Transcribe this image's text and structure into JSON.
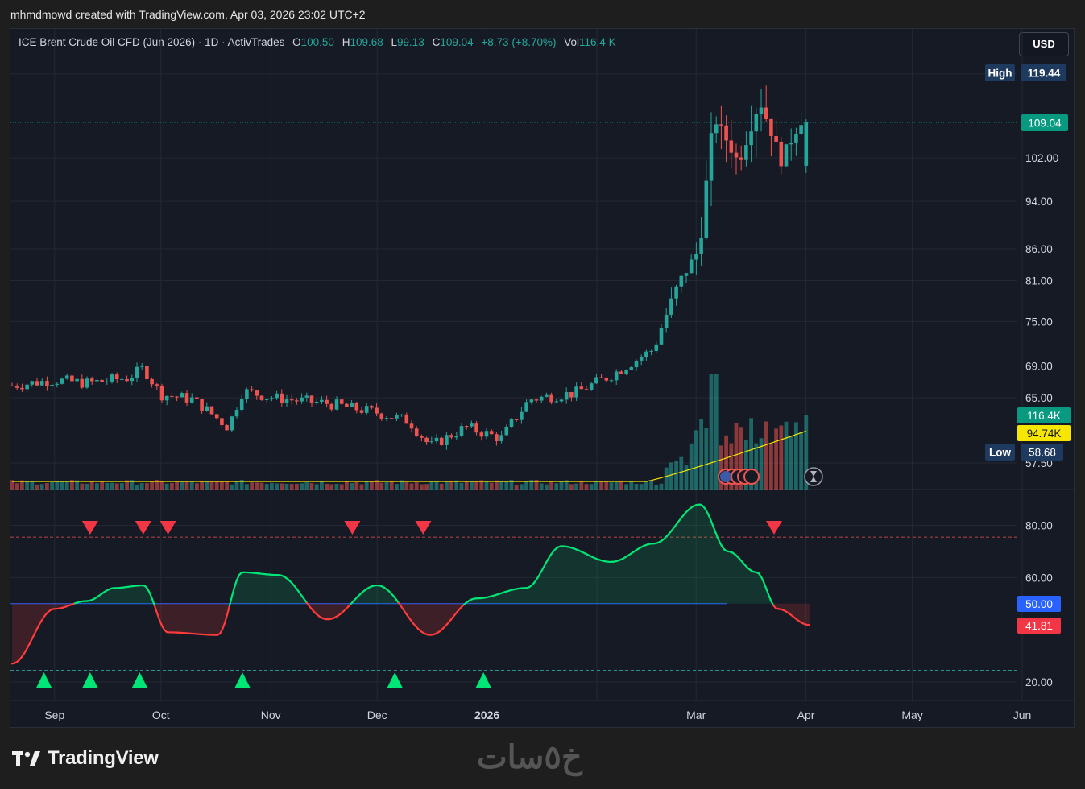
{
  "caption": "mhmdmowd created with TradingView.com, Apr 03, 2026 23:02 UTC+2",
  "legend": {
    "symbol": "ICE Brent Crude Oil CFD (Jun 2026) · 1D · ActivTrades",
    "open_label": "O",
    "open": "100.50",
    "high_label": "H",
    "high": "109.68",
    "low_label": "L",
    "low": "99.13",
    "close_label": "C",
    "close": "109.04",
    "change": "+8.73 (+8.70%)",
    "vol_label": "Vol",
    "vol": "116.4 K"
  },
  "currency_button": "USD",
  "price_axis": {
    "high_label": "High",
    "high_value": "119.44",
    "last_price": "109.04",
    "low_label": "Low",
    "low_value": "58.68",
    "volume_badge": "116.4K",
    "volume_ma_badge": "94.74K",
    "ticks": [
      "119.44",
      "109.04",
      "102.00",
      "94.00",
      "86.00",
      "81.00",
      "75.00",
      "69.00",
      "65.00",
      "57.50"
    ]
  },
  "rsi_axis": {
    "ticks": [
      "80.00",
      "60.00",
      "20.00"
    ],
    "mid_badge": "50.00",
    "last_badge": "41.81"
  },
  "time_axis": [
    "Sep",
    "Oct",
    "Nov",
    "Dec",
    "2026",
    "Mar",
    "Apr",
    "May",
    "Jun"
  ],
  "branding": {
    "logo": "TradingView",
    "watermark": "خ٥سات"
  },
  "colors": {
    "up": "#26a69a",
    "down": "#ef5350",
    "rsi_up": "#00e676",
    "rsi_down": "#ff3b3b",
    "last_price": "#089981",
    "axis_badge": "#1e3a5f",
    "vol_ma": "#f7e600",
    "rsi_mid": "#2962ff"
  },
  "chart_data": {
    "type": "candlestick",
    "panes": [
      "price",
      "volume",
      "rsi"
    ],
    "price_scale": "log",
    "price_range": [
      57.5,
      119.44
    ],
    "rsi_range": [
      20,
      80
    ],
    "close_series_approx": [
      [
        "2025-08-20",
        66.5
      ],
      [
        "2025-09-01",
        67.2
      ],
      [
        "2025-09-10",
        66.8
      ],
      [
        "2025-09-22",
        67.5
      ],
      [
        "2025-09-26",
        68.7
      ],
      [
        "2025-10-01",
        65.4
      ],
      [
        "2025-10-10",
        64.8
      ],
      [
        "2025-10-20",
        61.5
      ],
      [
        "2025-10-24",
        65.8
      ],
      [
        "2025-11-03",
        64.9
      ],
      [
        "2025-11-17",
        64.3
      ],
      [
        "2025-12-01",
        63.2
      ],
      [
        "2025-12-10",
        62.2
      ],
      [
        "2025-12-16",
        59.3
      ],
      [
        "2025-12-26",
        61.5
      ],
      [
        "2026-01-05",
        60.2
      ],
      [
        "2026-01-13",
        64.8
      ],
      [
        "2026-01-26",
        65.6
      ],
      [
        "2026-02-05",
        67.8
      ],
      [
        "2026-02-17",
        71.2
      ],
      [
        "2026-02-24",
        80.5
      ],
      [
        "2026-03-02",
        86.0
      ],
      [
        "2026-03-06",
        110.2
      ],
      [
        "2026-03-13",
        101.0
      ],
      [
        "2026-03-19",
        113.5
      ],
      [
        "2026-03-25",
        101.5
      ],
      [
        "2026-03-31",
        110.0
      ],
      [
        "2026-04-02",
        109.04
      ]
    ],
    "rsi_series_approx": [
      [
        "2025-08-20",
        27
      ],
      [
        "2025-09-01",
        48
      ],
      [
        "2025-09-10",
        51
      ],
      [
        "2025-09-18",
        56
      ],
      [
        "2025-09-26",
        57
      ],
      [
        "2025-10-03",
        39
      ],
      [
        "2025-10-17",
        38
      ],
      [
        "2025-10-24",
        62
      ],
      [
        "2025-11-03",
        61
      ],
      [
        "2025-11-17",
        44
      ],
      [
        "2025-12-01",
        57
      ],
      [
        "2025-12-16",
        38
      ],
      [
        "2025-12-29",
        52
      ],
      [
        "2026-01-12",
        56
      ],
      [
        "2026-01-22",
        72
      ],
      [
        "2026-02-05",
        66
      ],
      [
        "2026-02-17",
        73
      ],
      [
        "2026-03-02",
        88
      ],
      [
        "2026-03-10",
        70
      ],
      [
        "2026-03-18",
        62
      ],
      [
        "2026-03-24",
        48
      ],
      [
        "2026-04-02",
        41.81
      ]
    ],
    "rsi_signals": {
      "overbought_markers": [
        "2025-09-11",
        "2025-09-26",
        "2025-10-03",
        "2025-11-24",
        "2025-12-14",
        "2026-03-23"
      ],
      "oversold_markers": [
        "2025-08-29",
        "2025-09-11",
        "2025-09-25",
        "2025-10-24",
        "2025-12-06",
        "2025-12-31"
      ]
    },
    "volume_last": "116.4K",
    "volume_ma_last": "94.74K"
  }
}
